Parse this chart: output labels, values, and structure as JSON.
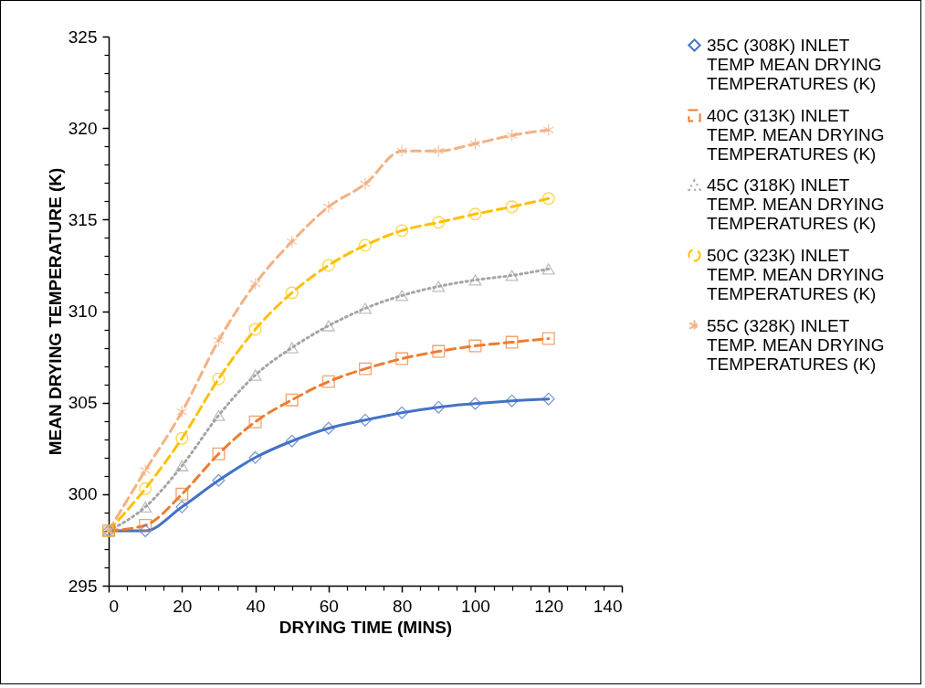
{
  "chart_data": {
    "type": "line",
    "xlabel": "DRYING TIME (MINS)",
    "ylabel": "MEAN DRYING TEMPERATURE (K)",
    "x": [
      0,
      10,
      20,
      30,
      40,
      50,
      60,
      70,
      80,
      90,
      100,
      110,
      120
    ],
    "series": [
      {
        "name": "35C (308K) INLET TEMP MEAN DRYING TEMPERATURES (K)",
        "color": "#4472c4",
        "marker": "diamond",
        "line_style": "solid",
        "values": [
          298.0,
          298.0,
          299.3,
          300.75,
          302.0,
          302.9,
          303.6,
          304.05,
          304.45,
          304.75,
          304.95,
          305.1,
          305.2
        ]
      },
      {
        "name": "40C (313K) INLET TEMP. MEAN DRYING TEMPERATURES (K)",
        "color": "#ed7d31",
        "marker": "square",
        "line_style": "dashed",
        "values": [
          298.0,
          298.3,
          300.0,
          302.2,
          303.95,
          305.15,
          306.15,
          306.85,
          307.4,
          307.8,
          308.1,
          308.3,
          308.5
        ]
      },
      {
        "name": "45C (318K) INLET TEMP. MEAN DRYING TEMPERATURES (K)",
        "color": "#a5a5a5",
        "marker": "triangle",
        "line_style": "dotted",
        "values": [
          298.0,
          299.3,
          301.55,
          304.3,
          306.5,
          308.0,
          309.2,
          310.15,
          310.85,
          311.35,
          311.7,
          311.95,
          312.3
        ]
      },
      {
        "name": "50C (323K) INLET TEMP. MEAN DRYING TEMPERATURES (K)",
        "color": "#ffc000",
        "marker": "circle",
        "line_style": "dashed",
        "values": [
          298.0,
          300.3,
          303.05,
          306.3,
          309.0,
          311.0,
          312.5,
          313.6,
          314.4,
          314.85,
          315.3,
          315.7,
          316.15
        ]
      },
      {
        "name": "55C (328K) INLET TEMP. MEAN DRYING TEMPERATURES (K)",
        "color": "#f4b183",
        "marker": "cross",
        "line_style": "dashed",
        "values": [
          298.0,
          301.3,
          304.5,
          308.4,
          311.5,
          313.8,
          315.7,
          316.95,
          318.75,
          318.75,
          319.15,
          319.6,
          319.9
        ]
      }
    ],
    "xlim": [
      0,
      140
    ],
    "xticks": [
      0,
      {
        "value": 5,
        "label": null
      },
      {
        "value": 10,
        "label": null
      },
      {
        "value": 15,
        "label": null
      },
      20,
      {
        "value": 25,
        "label": null
      },
      {
        "value": 30,
        "label": null
      },
      {
        "value": 35,
        "label": null
      },
      40,
      {
        "value": 45,
        "label": null
      },
      {
        "value": 50,
        "label": null
      },
      {
        "value": 55,
        "label": null
      },
      60,
      {
        "value": 65,
        "label": null
      },
      {
        "value": 70,
        "label": null
      },
      {
        "value": 75,
        "label": null
      },
      80,
      {
        "value": 85,
        "label": null
      },
      {
        "value": 90,
        "label": null
      },
      {
        "value": 95,
        "label": null
      },
      100,
      {
        "value": 105,
        "label": null
      },
      {
        "value": 110,
        "label": null
      },
      {
        "value": 115,
        "label": null
      },
      120,
      {
        "value": 125,
        "label": null
      },
      {
        "value": 130,
        "label": null
      },
      {
        "value": 135,
        "label": null
      },
      140
    ],
    "ylim": [
      295,
      325
    ],
    "yticks": [
      295,
      {
        "value": 296,
        "label": null
      },
      {
        "value": 297,
        "label": null
      },
      {
        "value": 298,
        "label": null
      },
      {
        "value": 299,
        "label": null
      },
      300,
      {
        "value": 301,
        "label": null
      },
      {
        "value": 302,
        "label": null
      },
      {
        "value": 303,
        "label": null
      },
      {
        "value": 304,
        "label": null
      },
      305,
      {
        "value": 306,
        "label": null
      },
      {
        "value": 307,
        "label": null
      },
      {
        "value": 308,
        "label": null
      },
      {
        "value": 309,
        "label": null
      },
      310,
      {
        "value": 311,
        "label": null
      },
      {
        "value": 312,
        "label": null
      },
      {
        "value": 313,
        "label": null
      },
      {
        "value": 314,
        "label": null
      },
      315,
      {
        "value": 316,
        "label": null
      },
      {
        "value": 317,
        "label": null
      },
      {
        "value": 318,
        "label": null
      },
      {
        "value": 319,
        "label": null
      },
      320,
      {
        "value": 321,
        "label": null
      },
      {
        "value": 322,
        "label": null
      },
      {
        "value": 323,
        "label": null
      },
      {
        "value": 324,
        "label": null
      },
      325
    ],
    "grid": false,
    "legend": "right"
  }
}
